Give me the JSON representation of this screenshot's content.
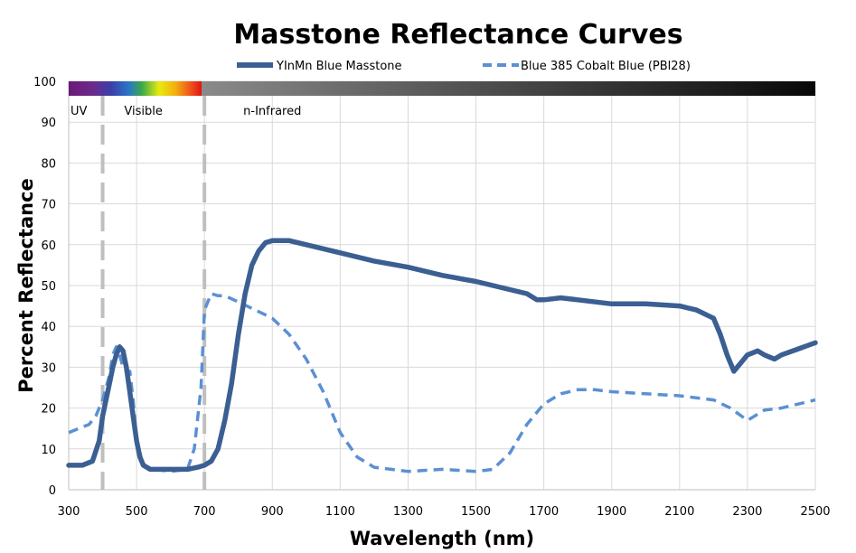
{
  "chart_data": {
    "type": "line",
    "title": "Masstone Reflectance Curves",
    "xlabel": "Wavelength (nm)",
    "ylabel": "Percent Reflectance",
    "xlim": [
      300,
      2500
    ],
    "ylim": [
      0,
      100
    ],
    "x_ticks": [
      300,
      500,
      700,
      900,
      1100,
      1300,
      1500,
      1700,
      1900,
      2100,
      2300,
      2500
    ],
    "y_ticks": [
      0,
      10,
      20,
      30,
      40,
      50,
      60,
      70,
      80,
      90,
      100
    ],
    "grid": true,
    "legend_position": "top",
    "regions": [
      {
        "label": "UV",
        "x": 330
      },
      {
        "label": "Visible",
        "x": 520
      },
      {
        "label": "n-Infrared",
        "x": 900
      }
    ],
    "boundaries": [
      400,
      700
    ],
    "spectrum_bar": {
      "visible_range": [
        300,
        700
      ],
      "infrared_colors": [
        "#8a8a8a",
        "#080808"
      ]
    },
    "series": [
      {
        "name": "YInMn Blue Masstone",
        "color": "#3b5f92",
        "style": "solid",
        "x": [
          300,
          340,
          370,
          390,
          400,
          410,
          420,
          430,
          440,
          450,
          460,
          470,
          480,
          490,
          500,
          510,
          520,
          540,
          560,
          600,
          650,
          680,
          700,
          720,
          740,
          760,
          780,
          800,
          820,
          840,
          860,
          880,
          900,
          950,
          1000,
          1100,
          1200,
          1300,
          1400,
          1500,
          1600,
          1650,
          1680,
          1700,
          1750,
          1800,
          1900,
          2000,
          2100,
          2150,
          2200,
          2220,
          2240,
          2260,
          2280,
          2300,
          2330,
          2350,
          2380,
          2400,
          2450,
          2500
        ],
        "y": [
          6,
          6,
          7,
          12,
          18,
          22,
          26,
          30,
          33,
          35,
          34,
          30,
          24,
          18,
          12,
          8,
          6,
          5,
          5,
          5,
          5,
          5.5,
          6,
          7,
          10,
          17,
          26,
          38,
          48,
          55,
          58.5,
          60.5,
          61,
          61,
          60,
          58,
          56,
          54.5,
          52.5,
          51,
          49,
          48,
          46.5,
          46.5,
          47,
          46.5,
          45.5,
          45.5,
          45,
          44,
          42,
          38,
          33,
          29,
          31,
          33,
          34,
          33,
          32,
          33,
          34.5,
          36
        ]
      },
      {
        "name": "Blue 385 Cobalt Blue (PBl28)",
        "color": "#5b90d3",
        "style": "dashed",
        "x": [
          300,
          330,
          360,
          380,
          400,
          420,
          430,
          440,
          450,
          460,
          470,
          480,
          490,
          500,
          520,
          550,
          600,
          650,
          670,
          690,
          700,
          720,
          740,
          760,
          800,
          850,
          900,
          950,
          1000,
          1050,
          1100,
          1150,
          1200,
          1250,
          1300,
          1400,
          1500,
          1550,
          1600,
          1650,
          1700,
          1750,
          1800,
          1850,
          1900,
          2000,
          2100,
          2200,
          2250,
          2300,
          2350,
          2400,
          2500
        ],
        "y": [
          14,
          15,
          16,
          18,
          22,
          28,
          33,
          35,
          33,
          30,
          29,
          29,
          22,
          12,
          6,
          5,
          4.5,
          5,
          10,
          25,
          44,
          48,
          47.5,
          47.5,
          46,
          44,
          42,
          38,
          32,
          24,
          14,
          8,
          5.5,
          5,
          4.5,
          5,
          4.5,
          5,
          9,
          16,
          21,
          23.5,
          24.5,
          24.5,
          24,
          23.5,
          23,
          22,
          20,
          17,
          19.5,
          20,
          22
        ]
      }
    ]
  }
}
